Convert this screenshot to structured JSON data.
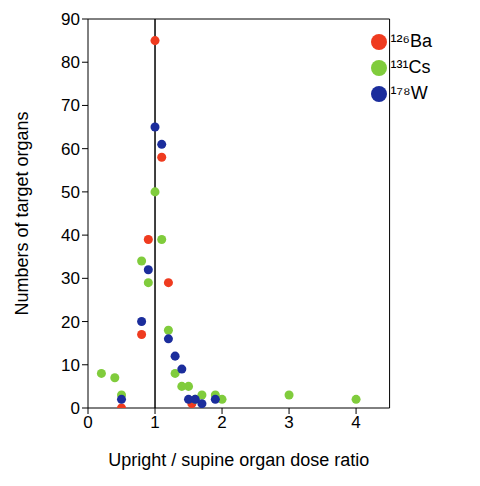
{
  "chart_data": {
    "type": "scatter",
    "x_label": "Upright / supine organ dose ratio",
    "y_label": "Numbers of target organs",
    "xlim": [
      0,
      4.5
    ],
    "xticks": [
      0,
      1,
      2,
      3,
      4
    ],
    "ylim": [
      0,
      90
    ],
    "yticks": [
      0,
      10,
      20,
      30,
      40,
      50,
      60,
      70,
      80,
      90
    ],
    "reference_x": 1,
    "legend": "upper right",
    "marker": "circle",
    "series": [
      {
        "name": "¹²⁶Ba",
        "color": "#ef3b1f",
        "x": [
          0.5,
          0.8,
          0.9,
          1.0,
          1.1,
          1.2,
          1.55
        ],
        "values": [
          0,
          17,
          39,
          85,
          58,
          29,
          1
        ]
      },
      {
        "name": "¹³¹Cs",
        "color": "#80cc3c",
        "x": [
          0.2,
          0.4,
          0.5,
          0.8,
          0.9,
          1.0,
          1.1,
          1.2,
          1.3,
          1.4,
          1.5,
          1.6,
          1.7,
          1.9,
          2.0,
          3.0,
          4.0
        ],
        "values": [
          8,
          7,
          3,
          34,
          29,
          50,
          39,
          18,
          8,
          5,
          5,
          2,
          3,
          3,
          2,
          3,
          2
        ]
      },
      {
        "name": "¹⁷⁸W",
        "color": "#1b2d9c",
        "x": [
          0.5,
          0.8,
          0.9,
          1.0,
          1.1,
          1.2,
          1.3,
          1.4,
          1.5,
          1.6,
          1.7,
          1.9
        ],
        "values": [
          2,
          20,
          32,
          65,
          61,
          16,
          12,
          9,
          2,
          2,
          1,
          2
        ]
      }
    ]
  }
}
